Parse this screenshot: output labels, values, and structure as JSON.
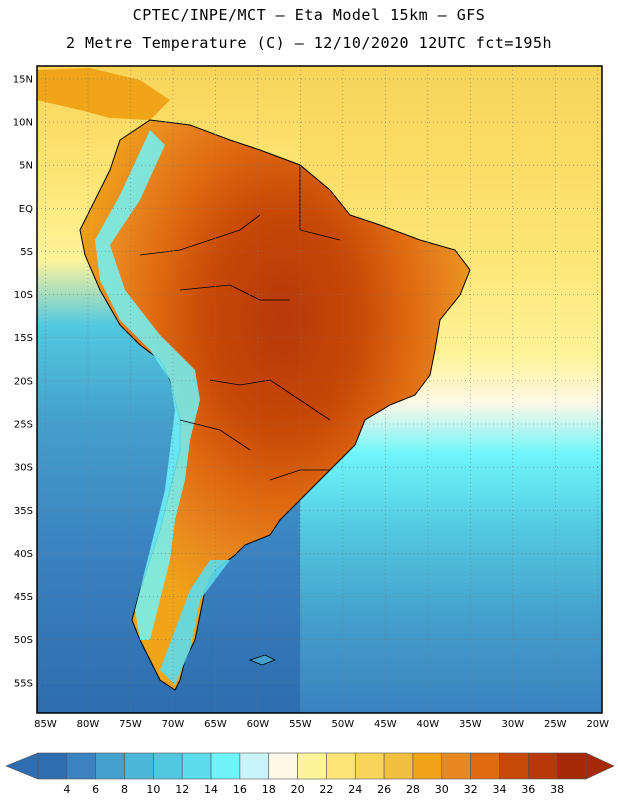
{
  "header": {
    "line1": "CPTEC/INPE/MCT –  Eta Model 15km – GFS",
    "line2": "2 Metre Temperature (C) – 12/10/2020 12UTC fct=195h"
  },
  "map": {
    "lat_labels": [
      "15N",
      "10N",
      "5N",
      "EQ",
      "5S",
      "10S",
      "15S",
      "20S",
      "25S",
      "30S",
      "35S",
      "40S",
      "45S",
      "50S",
      "55S"
    ],
    "lon_labels": [
      "85W",
      "80W",
      "75W",
      "70W",
      "65W",
      "60W",
      "55W",
      "50W",
      "45W",
      "40W",
      "35W",
      "30W",
      "25W",
      "20W"
    ],
    "extent": {
      "lon_min": -86,
      "lon_max": -19.5,
      "lat_min": -58.5,
      "lat_max": 16.5
    }
  },
  "colorbar": {
    "levels": [
      "4",
      "6",
      "8",
      "10",
      "12",
      "14",
      "16",
      "18",
      "20",
      "22",
      "24",
      "26",
      "28",
      "30",
      "32",
      "34",
      "36",
      "38"
    ],
    "colors": [
      "#2d6db0",
      "#3a82c0",
      "#44a0cc",
      "#4bb6d8",
      "#52c8e0",
      "#5cdcec",
      "#6ef5fa",
      "#c8f4fa",
      "#fff8e6",
      "#fff49a",
      "#fde676",
      "#f8d458",
      "#f2c040",
      "#f0a418",
      "#e8881e",
      "#e06a10",
      "#c84806",
      "#b8380a",
      "#a42a08"
    ]
  }
}
